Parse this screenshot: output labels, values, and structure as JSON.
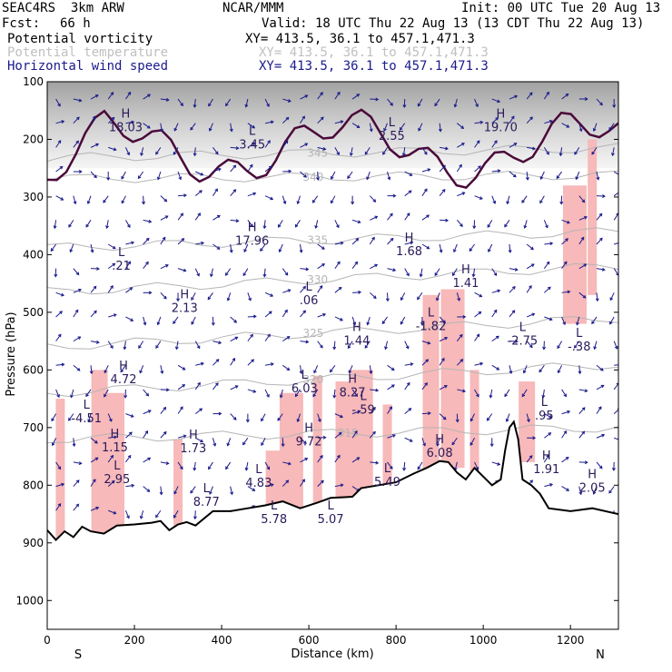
{
  "header": {
    "model_line": "SEAC4RS  3km ARW",
    "org": "NCAR/MMM",
    "init": "Init: 00 UTC Tue 20 Aug 13",
    "fcst_label": "Fcst:",
    "fcst_value": "66 h",
    "valid": "Valid: 18 UTC Thu 22 Aug 13 (13 CDT Thu 22 Aug 13)"
  },
  "fields": [
    {
      "name": "Potential vorticity",
      "xy": "XY= 413.5, 36.1 to 457.1,471.3",
      "color": "#000000"
    },
    {
      "name": "Potential temperature",
      "xy": "XY= 413.5, 36.1 to 457.1,471.3",
      "color": "#c0c0c0"
    },
    {
      "name": "Horizontal wind speed",
      "xy": "XY= 413.5, 36.1 to 457.1,471.3",
      "color": "#1a1a8c"
    }
  ],
  "chart_data": {
    "type": "cross-section",
    "xlabel": "Distance (km)",
    "ylabel": "Pressure (hPa)",
    "xlim": [
      0,
      1310
    ],
    "ylim": [
      100,
      1050
    ],
    "y_inverted": true,
    "x_ticks": [
      "0",
      "200",
      "400",
      "600",
      "800",
      "1000",
      "1200"
    ],
    "x_tick_values": [
      0,
      200,
      400,
      600,
      800,
      1000,
      1200
    ],
    "y_ticks": [
      "100",
      "200",
      "300",
      "400",
      "500",
      "600",
      "700",
      "800",
      "900",
      "1000"
    ],
    "y_tick_values": [
      100,
      200,
      300,
      400,
      500,
      600,
      700,
      800,
      900,
      1000
    ],
    "endpoint_left": "S",
    "endpoint_right": "N",
    "terrain": [
      [
        0,
        878
      ],
      [
        20,
        895
      ],
      [
        40,
        880
      ],
      [
        60,
        890
      ],
      [
        80,
        872
      ],
      [
        100,
        880
      ],
      [
        130,
        884
      ],
      [
        160,
        870
      ],
      [
        200,
        868
      ],
      [
        240,
        865
      ],
      [
        260,
        862
      ],
      [
        280,
        878
      ],
      [
        300,
        868
      ],
      [
        320,
        864
      ],
      [
        340,
        870
      ],
      [
        380,
        845
      ],
      [
        420,
        845
      ],
      [
        460,
        840
      ],
      [
        500,
        835
      ],
      [
        540,
        828
      ],
      [
        580,
        840
      ],
      [
        620,
        830
      ],
      [
        650,
        822
      ],
      [
        700,
        820
      ],
      [
        720,
        805
      ],
      [
        760,
        800
      ],
      [
        800,
        795
      ],
      [
        840,
        780
      ],
      [
        870,
        770
      ],
      [
        900,
        758
      ],
      [
        920,
        760
      ],
      [
        940,
        778
      ],
      [
        960,
        790
      ],
      [
        980,
        770
      ],
      [
        1000,
        785
      ],
      [
        1020,
        800
      ],
      [
        1040,
        790
      ],
      [
        1050,
        740
      ],
      [
        1060,
        700
      ],
      [
        1070,
        690
      ],
      [
        1080,
        720
      ],
      [
        1090,
        790
      ],
      [
        1110,
        800
      ],
      [
        1130,
        815
      ],
      [
        1150,
        840
      ],
      [
        1200,
        845
      ],
      [
        1250,
        840
      ],
      [
        1310,
        850
      ]
    ],
    "isentropes": [
      {
        "label": "345",
        "y_left": 232,
        "y_right": 215,
        "label_x": 620
      },
      {
        "label": "340",
        "y_left": 268,
        "y_right": 262,
        "label_x": 610
      },
      {
        "label": "335",
        "y_left": 388,
        "y_right": 360,
        "label_x": 620
      },
      {
        "label": "330",
        "y_left": 465,
        "y_right": 420,
        "label_x": 620
      },
      {
        "label": "325",
        "y_left": 560,
        "y_right": 510,
        "label_x": 610
      },
      {
        "label": "320",
        "y_left": 640,
        "y_right": 590,
        "label_x": 610
      },
      {
        "label": "315",
        "y_left": 720,
        "y_right": 700,
        "label_x": 690
      }
    ],
    "pv_labels": [
      {
        "kind": "H",
        "value": "18.03",
        "x": 180,
        "p": 175
      },
      {
        "kind": "L",
        "value": "3.45",
        "x": 470,
        "p": 205
      },
      {
        "kind": "L",
        "value": "2.55",
        "x": 790,
        "p": 190
      },
      {
        "kind": "H",
        "value": "19.70",
        "x": 1040,
        "p": 175
      },
      {
        "kind": "H",
        "value": "17.96",
        "x": 470,
        "p": 372
      },
      {
        "kind": "H",
        "value": "1.68",
        "x": 830,
        "p": 390
      },
      {
        "kind": "H",
        "value": "1.41",
        "x": 960,
        "p": 445
      },
      {
        "kind": "L",
        "value": ".21",
        "x": 170,
        "p": 415
      },
      {
        "kind": "L",
        "value": ".06",
        "x": 600,
        "p": 475
      },
      {
        "kind": "H",
        "value": "2.13",
        "x": 315,
        "p": 488
      },
      {
        "kind": "H",
        "value": "1.44",
        "x": 710,
        "p": 545
      },
      {
        "kind": "L",
        "value": "-1.82",
        "x": 880,
        "p": 520
      },
      {
        "kind": "L",
        "value": "-2.75",
        "x": 1090,
        "p": 545
      },
      {
        "kind": "L",
        "value": "-.38",
        "x": 1220,
        "p": 555
      },
      {
        "kind": "H",
        "value": "4.72",
        "x": 175,
        "p": 612
      },
      {
        "kind": "L",
        "value": "6.03",
        "x": 590,
        "p": 628
      },
      {
        "kind": "H",
        "value": "8.27",
        "x": 700,
        "p": 635
      },
      {
        "kind": "L",
        "value": "-4.51",
        "x": 90,
        "p": 680
      },
      {
        "kind": "L",
        "value": "-.59",
        "x": 725,
        "p": 665
      },
      {
        "kind": "L",
        "value": ".95",
        "x": 1140,
        "p": 675
      },
      {
        "kind": "H",
        "value": "1.15",
        "x": 155,
        "p": 730
      },
      {
        "kind": "H",
        "value": "1.73",
        "x": 335,
        "p": 732
      },
      {
        "kind": "H",
        "value": "9.72",
        "x": 600,
        "p": 720
      },
      {
        "kind": "H",
        "value": "6.08",
        "x": 900,
        "p": 740
      },
      {
        "kind": "H",
        "value": "1.91",
        "x": 1145,
        "p": 768
      },
      {
        "kind": "L",
        "value": "2.95",
        "x": 160,
        "p": 785
      },
      {
        "kind": "L",
        "value": "4.83",
        "x": 485,
        "p": 792
      },
      {
        "kind": "L",
        "value": "5.78",
        "x": 520,
        "p": 855
      },
      {
        "kind": "L",
        "value": "8.77",
        "x": 365,
        "p": 825
      },
      {
        "kind": "L",
        "value": "5.49",
        "x": 780,
        "p": 790
      },
      {
        "kind": "L",
        "value": "5.07",
        "x": 650,
        "p": 855
      },
      {
        "kind": "H",
        "value": "2.05",
        "x": 1250,
        "p": 800
      }
    ]
  }
}
